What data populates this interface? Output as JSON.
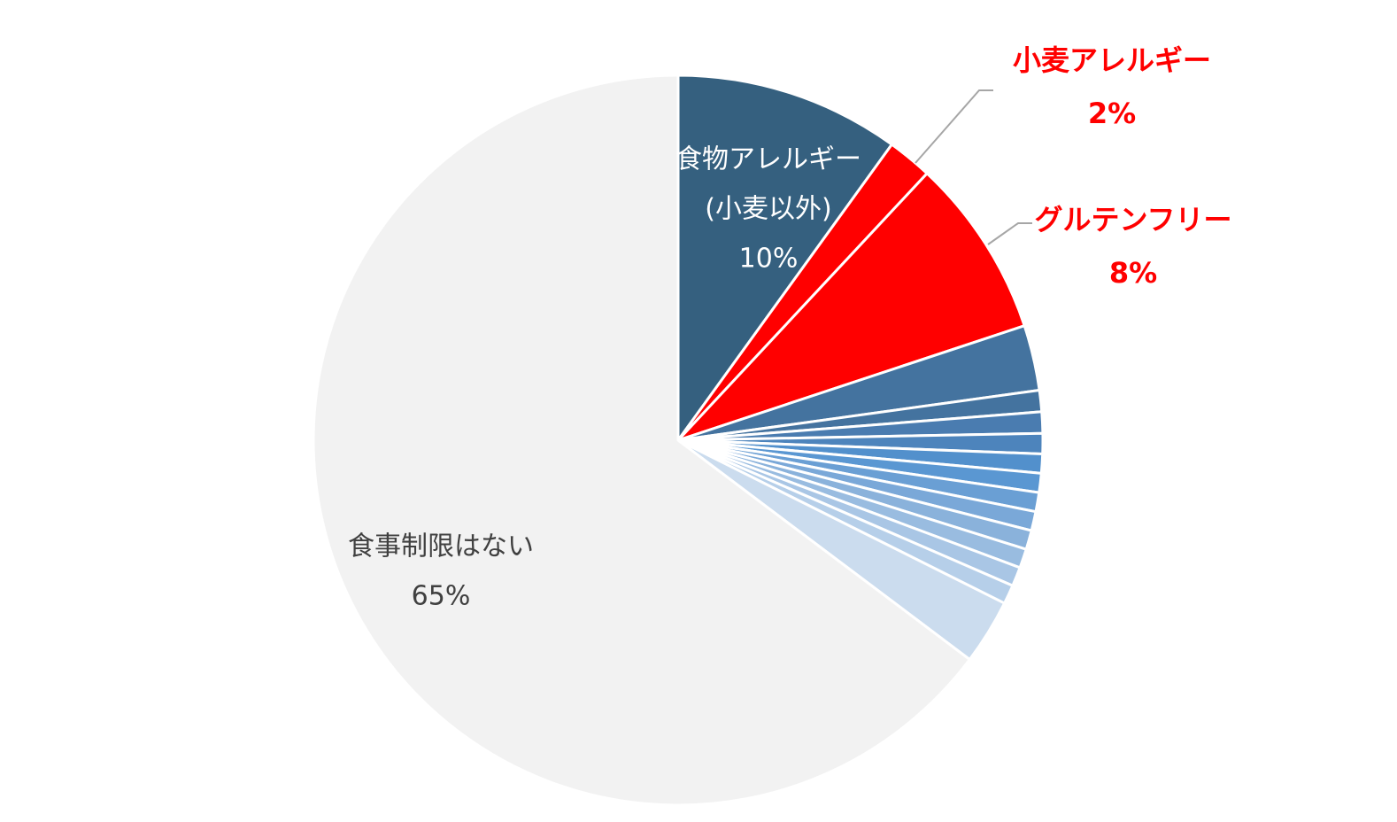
{
  "chart_data": {
    "type": "pie",
    "title": "",
    "start": "12 o'clock",
    "direction": "clockwise",
    "slices": [
      {
        "label": "食物アレルギー(小麦以外)",
        "value": 10,
        "color": "#35607f"
      },
      {
        "label": "小麦アレルギー",
        "value": 2,
        "color": "#ff0000"
      },
      {
        "label": "グルテンフリー",
        "value": 8,
        "color": "#ff0000"
      },
      {
        "label": "",
        "value": 2.9,
        "color": "#44739f"
      },
      {
        "label": "",
        "value": 0.95,
        "color": "#44739f"
      },
      {
        "label": "",
        "value": 0.95,
        "color": "#4a7cb0"
      },
      {
        "label": "",
        "value": 0.9,
        "color": "#4d84bc"
      },
      {
        "label": "",
        "value": 0.85,
        "color": "#5290cc"
      },
      {
        "label": "",
        "value": 0.85,
        "color": "#5a97d2"
      },
      {
        "label": "",
        "value": 0.85,
        "color": "#6a9fd4"
      },
      {
        "label": "",
        "value": 0.85,
        "color": "#7aa8d8"
      },
      {
        "label": "",
        "value": 0.85,
        "color": "#8ab2db"
      },
      {
        "label": "",
        "value": 0.85,
        "color": "#99bce0"
      },
      {
        "label": "",
        "value": 0.85,
        "color": "#a9c6e5"
      },
      {
        "label": "",
        "value": 0.85,
        "color": "#b6cfe9"
      },
      {
        "label": "",
        "value": 2.9,
        "color": "#cbdcee"
      },
      {
        "label": "食事制限はない",
        "value": 65,
        "color": "#f2f2f2"
      }
    ],
    "labels": [
      {
        "name": "food-allergy",
        "lines": [
          "食物アレルギー",
          "(小麦以外)",
          "10%"
        ],
        "color": "#ffffff",
        "bold": false
      },
      {
        "name": "wheat-allergy",
        "lines": [
          "小麦アレルギー",
          "2%"
        ],
        "color": "#ff0000",
        "bold": true
      },
      {
        "name": "gluten-free",
        "lines": [
          "グルテンフリー",
          "8%"
        ],
        "color": "#ff0000",
        "bold": true
      },
      {
        "name": "no-restriction",
        "lines": [
          "食事制限はない",
          "65%"
        ],
        "color": "#404040",
        "bold": false
      }
    ]
  }
}
